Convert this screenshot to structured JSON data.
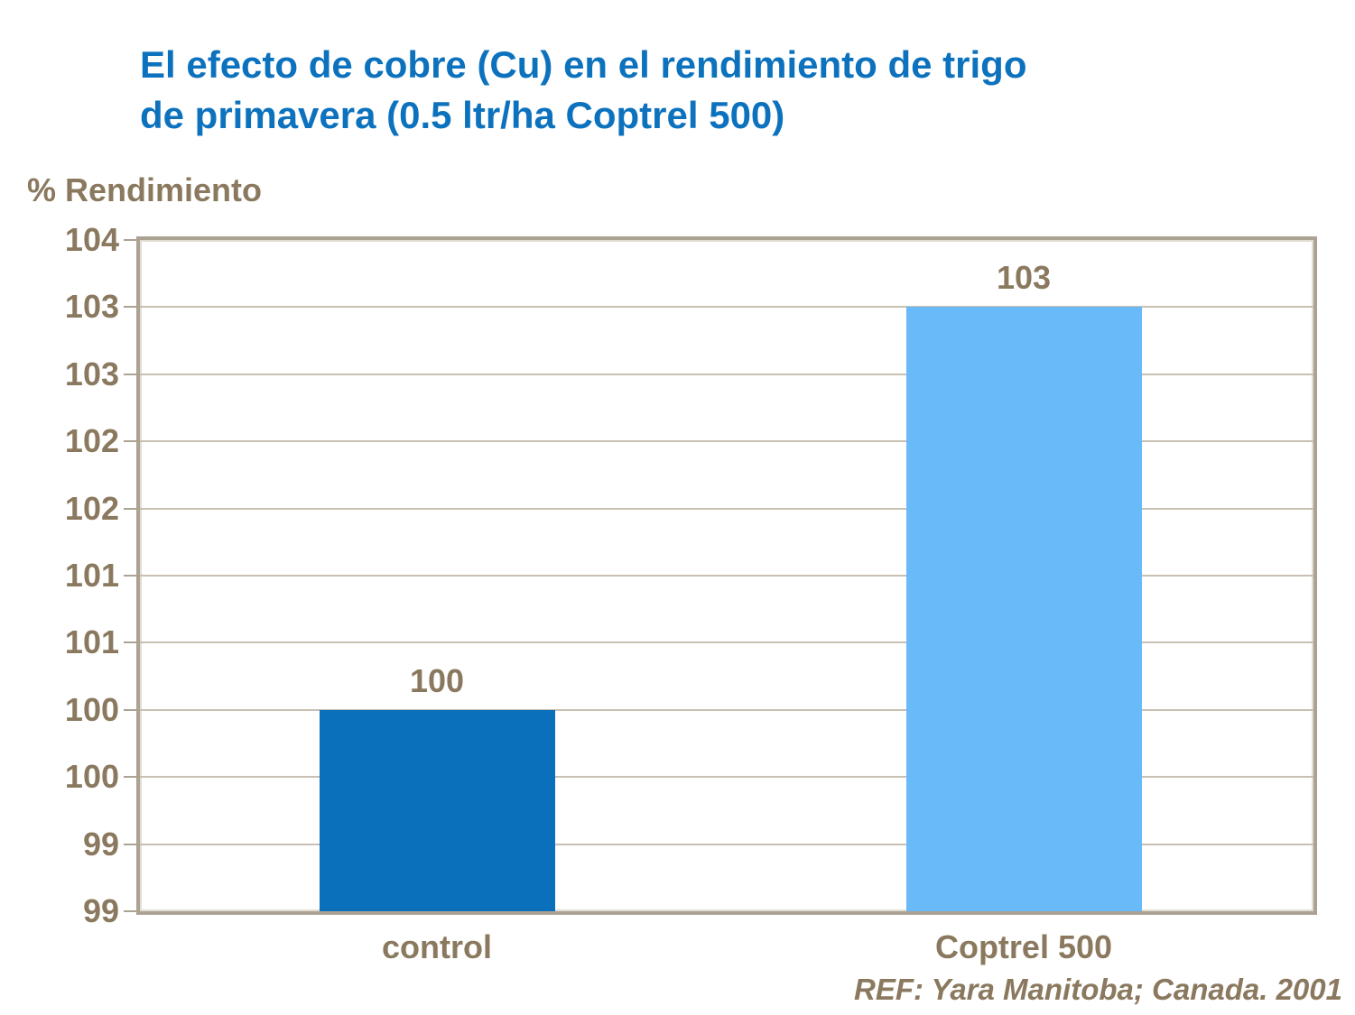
{
  "slide": {
    "title_line1": "El efecto de cobre (Cu) en el rendimiento de trigo",
    "title_line2": "de primavera (0.5 ltr/ha Coptrel 500)",
    "title_color": "#0D72BD",
    "text_color": "#8A795E"
  },
  "chart_data": {
    "type": "bar",
    "title": "El efecto de cobre (Cu) en el rendimiento de trigo de primavera (0.5 ltr/ha Coptrel 500)",
    "ylabel": "% Rendimiento",
    "xlabel": "",
    "categories": [
      "control",
      "Coptrel 500"
    ],
    "values": [
      100,
      103
    ],
    "value_labels": [
      "100",
      "103"
    ],
    "bar_colors": [
      "#0A70BC",
      "#68BAF8"
    ],
    "y_tick_labels_top_to_bottom": [
      "104",
      "103",
      "103",
      "102",
      "102",
      "101",
      "101",
      "100",
      "100",
      "99",
      "99"
    ],
    "ytick_step_display": 0.5,
    "ylim_display": [
      99,
      104
    ],
    "bar_top_tick_index_from_top": [
      7,
      1
    ],
    "grid": true,
    "legend": false,
    "annotation": "REF: Yara Manitoba; Canada. 2001"
  }
}
